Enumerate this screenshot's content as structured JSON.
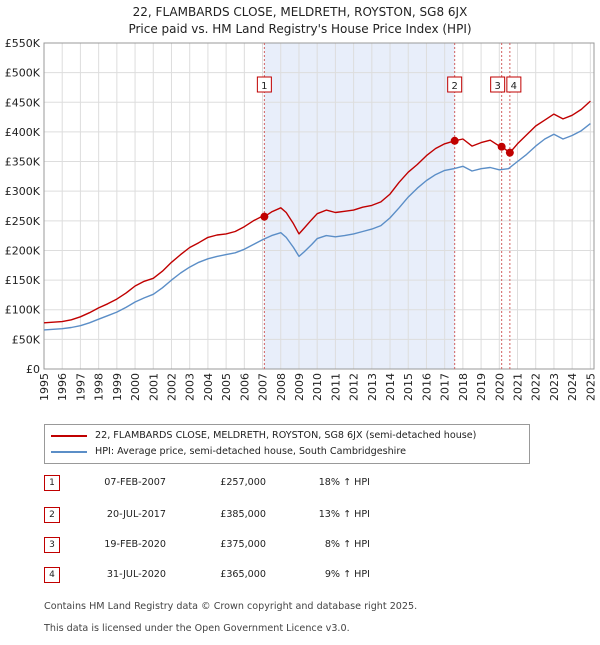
{
  "title_line1": "22, FLAMBARDS CLOSE, MELDRETH, ROYSTON, SG8 6JX",
  "title_line2": "Price paid vs. HM Land Registry's House Price Index (HPI)",
  "chart_data": {
    "type": "line",
    "title": "22, FLAMBARDS CLOSE, MELDRETH, ROYSTON, SG8 6JX",
    "subtitle": "Price paid vs. HM Land Registry's House Price Index (HPI)",
    "xlabel": "",
    "ylabel": "",
    "xlim": [
      1995,
      2025.2
    ],
    "ylim": [
      0,
      550000
    ],
    "grid": true,
    "y_ticks": [
      0,
      50000,
      100000,
      150000,
      200000,
      250000,
      300000,
      350000,
      400000,
      450000,
      500000,
      550000
    ],
    "y_tick_labels": [
      "£0",
      "£50K",
      "£100K",
      "£150K",
      "£200K",
      "£250K",
      "£300K",
      "£350K",
      "£400K",
      "£450K",
      "£500K",
      "£550K"
    ],
    "x_ticks": [
      1995,
      1996,
      1997,
      1998,
      1999,
      2000,
      2001,
      2002,
      2003,
      2004,
      2005,
      2006,
      2007,
      2008,
      2009,
      2010,
      2011,
      2012,
      2013,
      2014,
      2015,
      2016,
      2017,
      2018,
      2019,
      2020,
      2021,
      2022,
      2023,
      2024,
      2025
    ],
    "x_tick_labels": [
      "1995",
      "1996",
      "1997",
      "1998",
      "1999",
      "2000",
      "2001",
      "2002",
      "2003",
      "2004",
      "2005",
      "2006",
      "2007",
      "2008",
      "2009",
      "2010",
      "2011",
      "2012",
      "2013",
      "2014",
      "2015",
      "2016",
      "2017",
      "2018",
      "2019",
      "2020",
      "2021",
      "2022",
      "2023",
      "2024",
      "2025"
    ],
    "shaded_range": [
      2007.1,
      2017.55
    ],
    "series": [
      {
        "name": "22, FLAMBARDS CLOSE, MELDRETH, ROYSTON, SG8 6JX (semi-detached house)",
        "color": "#c00000",
        "x": [
          1995,
          1995.5,
          1996,
          1996.5,
          1997,
          1997.5,
          1998,
          1998.5,
          1999,
          1999.5,
          2000,
          2000.5,
          2001,
          2001.5,
          2002,
          2002.5,
          2003,
          2003.5,
          2004,
          2004.5,
          2005,
          2005.5,
          2006,
          2006.5,
          2007,
          2007.1,
          2007.5,
          2008,
          2008.3,
          2008.7,
          2009,
          2009.3,
          2009.7,
          2010,
          2010.5,
          2011,
          2011.5,
          2012,
          2012.5,
          2013,
          2013.5,
          2014,
          2014.5,
          2015,
          2015.5,
          2016,
          2016.5,
          2017,
          2017.55,
          2018,
          2018.5,
          2019,
          2019.5,
          2020,
          2020.13,
          2020.58,
          2021,
          2021.5,
          2022,
          2022.5,
          2023,
          2023.5,
          2024,
          2024.5,
          2025
        ],
        "values": [
          78000,
          79000,
          80000,
          83000,
          88000,
          95000,
          103000,
          110000,
          118000,
          128000,
          140000,
          148000,
          153000,
          165000,
          180000,
          193000,
          205000,
          213000,
          222000,
          226000,
          228000,
          232000,
          240000,
          250000,
          258000,
          257000,
          265000,
          272000,
          264000,
          245000,
          228000,
          238000,
          252000,
          262000,
          268000,
          264000,
          266000,
          268000,
          273000,
          276000,
          282000,
          295000,
          315000,
          332000,
          345000,
          360000,
          372000,
          380000,
          385000,
          388000,
          376000,
          382000,
          386000,
          376000,
          375000,
          365000,
          380000,
          395000,
          410000,
          420000,
          430000,
          422000,
          428000,
          438000,
          452000
        ]
      },
      {
        "name": "HPI: Average price, semi-detached house, South Cambridgeshire",
        "color": "#5b8ec7",
        "x": [
          1995,
          1995.5,
          1996,
          1996.5,
          1997,
          1997.5,
          1998,
          1998.5,
          1999,
          1999.5,
          2000,
          2000.5,
          2001,
          2001.5,
          2002,
          2002.5,
          2003,
          2003.5,
          2004,
          2004.5,
          2005,
          2005.5,
          2006,
          2006.5,
          2007,
          2007.5,
          2008,
          2008.3,
          2008.7,
          2009,
          2009.3,
          2009.7,
          2010,
          2010.5,
          2011,
          2011.5,
          2012,
          2012.5,
          2013,
          2013.5,
          2014,
          2014.5,
          2015,
          2015.5,
          2016,
          2016.5,
          2017,
          2017.5,
          2018,
          2018.5,
          2019,
          2019.5,
          2020,
          2020.5,
          2021,
          2021.5,
          2022,
          2022.5,
          2023,
          2023.5,
          2024,
          2024.5,
          2025
        ],
        "values": [
          66000,
          67000,
          68000,
          70000,
          73000,
          78000,
          84000,
          90000,
          96000,
          104000,
          113000,
          120000,
          126000,
          137000,
          150000,
          162000,
          172000,
          180000,
          186000,
          190000,
          193000,
          196000,
          202000,
          210000,
          218000,
          225000,
          230000,
          222000,
          205000,
          190000,
          198000,
          210000,
          220000,
          225000,
          223000,
          225000,
          228000,
          232000,
          236000,
          242000,
          255000,
          272000,
          290000,
          305000,
          318000,
          328000,
          335000,
          338000,
          342000,
          334000,
          338000,
          340000,
          336000,
          338000,
          350000,
          362000,
          376000,
          388000,
          396000,
          388000,
          394000,
          402000,
          414000
        ]
      }
    ],
    "sales": [
      {
        "label": "1",
        "x": 2007.1,
        "value": 257000
      },
      {
        "label": "2",
        "x": 2017.55,
        "value": 385000
      },
      {
        "label": "3",
        "x": 2020.13,
        "value": 375000
      },
      {
        "label": "4",
        "x": 2020.58,
        "value": 365000
      }
    ]
  },
  "legend": [
    {
      "label": "22, FLAMBARDS CLOSE, MELDRETH, ROYSTON, SG8 6JX (semi-detached house)",
      "color": "#c00000"
    },
    {
      "label": "HPI: Average price, semi-detached house, South Cambridgeshire",
      "color": "#5b8ec7"
    }
  ],
  "sales_table": [
    {
      "num": "1",
      "date": "07-FEB-2007",
      "price": "£257,000",
      "hpi": "18% ↑ HPI"
    },
    {
      "num": "2",
      "date": "20-JUL-2017",
      "price": "£385,000",
      "hpi": "13% ↑ HPI"
    },
    {
      "num": "3",
      "date": "19-FEB-2020",
      "price": "£375,000",
      "hpi": "8% ↑ HPI"
    },
    {
      "num": "4",
      "date": "31-JUL-2020",
      "price": "£365,000",
      "hpi": "9% ↑ HPI"
    }
  ],
  "footer_line1": "Contains HM Land Registry data © Crown copyright and database right 2025.",
  "footer_line2": "This data is licensed under the Open Government Licence v3.0."
}
